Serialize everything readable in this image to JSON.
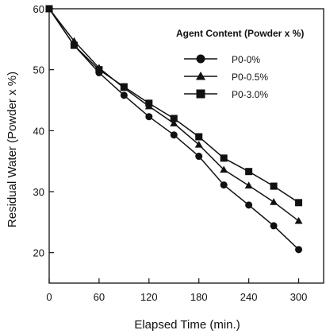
{
  "chart_data": {
    "type": "line",
    "xlabel": "Elapsed Time  (min.)",
    "ylabel": "Residual Water (Powder x %)",
    "xlim": [
      0,
      330
    ],
    "ylim": [
      15,
      60
    ],
    "x_ticks": [
      0,
      60,
      120,
      180,
      240,
      300
    ],
    "y_ticks": [
      20,
      30,
      40,
      50,
      60
    ],
    "grid": false,
    "legend_title": "Agent Content (Powder x %)",
    "legend_position": "top-right",
    "series": [
      {
        "name": "P0-0%",
        "marker": "circle",
        "x": [
          0,
          30,
          60,
          90,
          120,
          150,
          180,
          210,
          240,
          270,
          300
        ],
        "y": [
          60.0,
          54.0,
          49.5,
          45.8,
          42.3,
          39.3,
          35.8,
          31.1,
          27.8,
          24.4,
          20.5
        ]
      },
      {
        "name": "P0-0.5%",
        "marker": "triangle",
        "x": [
          0,
          30,
          60,
          90,
          120,
          150,
          180,
          210,
          240,
          270,
          300
        ],
        "y": [
          60.0,
          54.7,
          50.3,
          47.0,
          44.0,
          41.2,
          37.7,
          33.6,
          31.0,
          28.3,
          25.2
        ]
      },
      {
        "name": "P0-3.0%",
        "marker": "square",
        "x": [
          0,
          30,
          60,
          90,
          120,
          150,
          180,
          210,
          240,
          270,
          300
        ],
        "y": [
          60.0,
          54.0,
          50.0,
          47.2,
          44.5,
          42.0,
          39.0,
          35.5,
          33.3,
          30.9,
          28.2
        ]
      }
    ]
  }
}
